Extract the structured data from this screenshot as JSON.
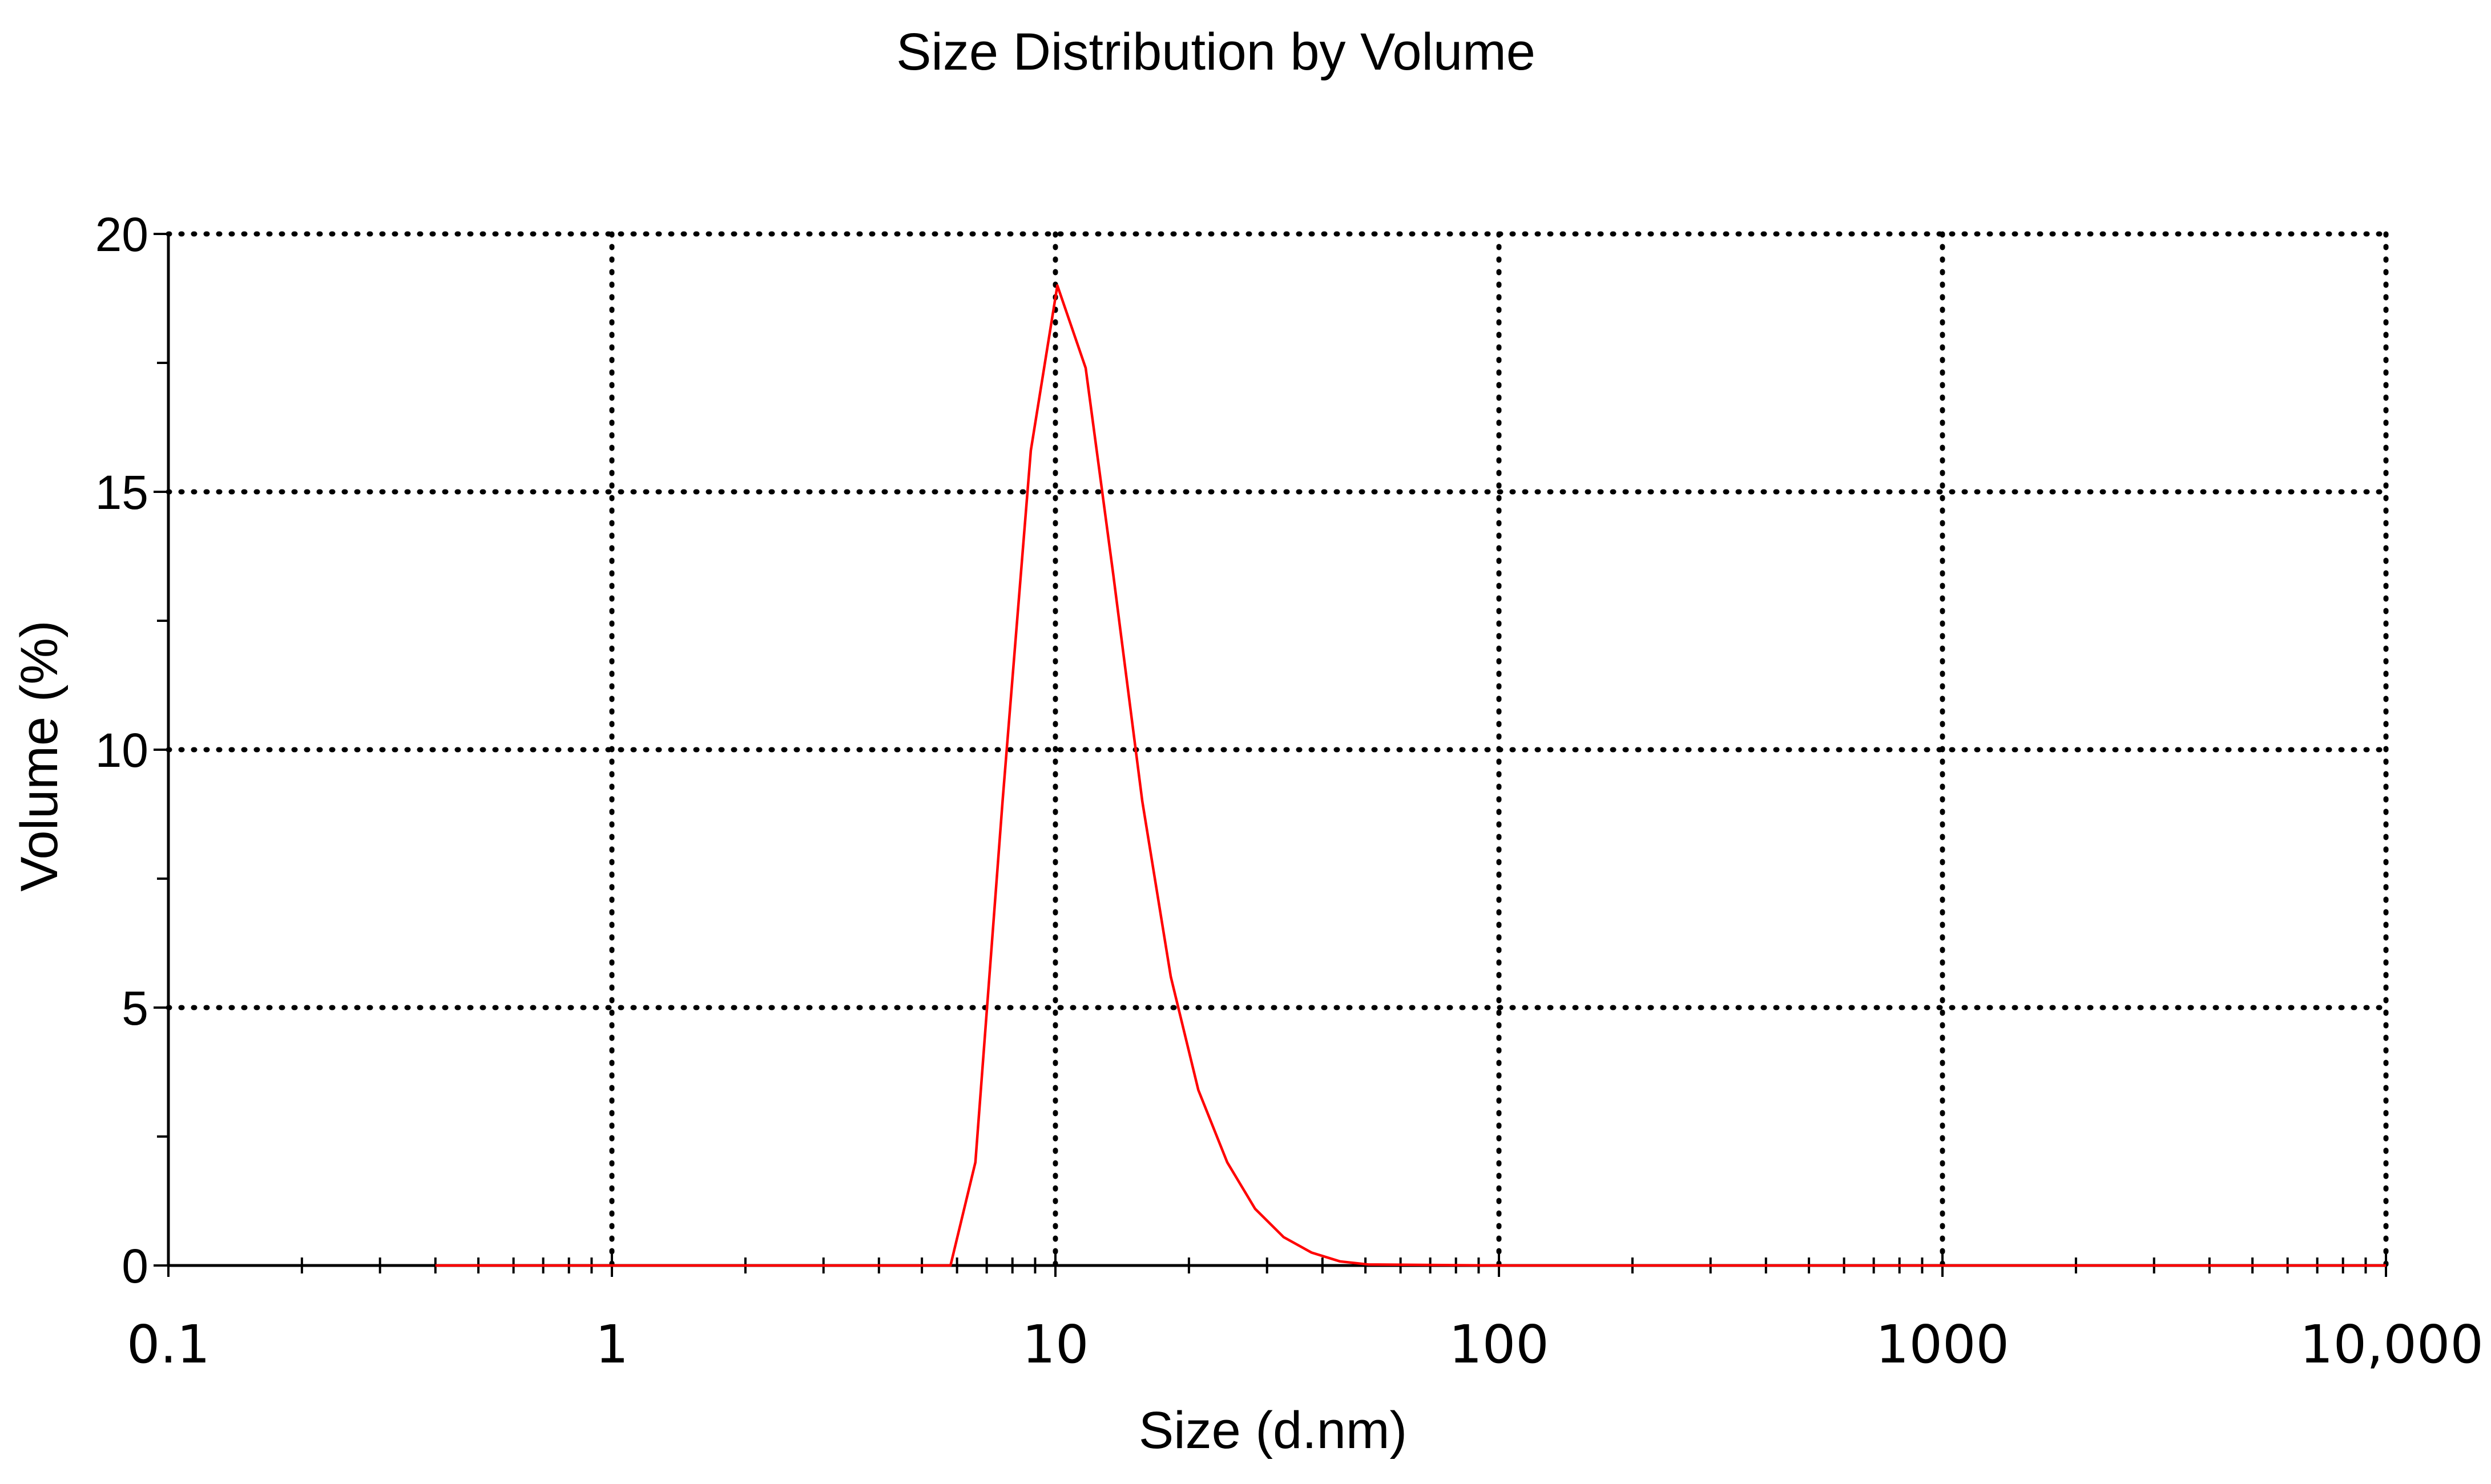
{
  "chart_data": {
    "type": "line",
    "title": "Size Distribution by Volume",
    "xlabel": "Size (d.nm)",
    "ylabel": "Volume (%)",
    "x_scale": "log",
    "xlim": [
      0.1,
      10000
    ],
    "ylim": [
      0,
      20
    ],
    "xticks": [
      {
        "value": 0.1,
        "label": "0.1"
      },
      {
        "value": 1,
        "label": "1"
      },
      {
        "value": 10,
        "label": "10"
      },
      {
        "value": 100,
        "label": "100"
      },
      {
        "value": 1000,
        "label": "1000"
      },
      {
        "value": 10000,
        "label": "10,000"
      }
    ],
    "yticks": [
      {
        "value": 0,
        "label": "0"
      },
      {
        "value": 5,
        "label": "5"
      },
      {
        "value": 10,
        "label": "10"
      },
      {
        "value": 15,
        "label": "15"
      },
      {
        "value": 20,
        "label": "20"
      }
    ],
    "grid": true,
    "grid_style": "dotted",
    "series": [
      {
        "color": "#ff0000",
        "x": [
          0.4,
          1,
          3,
          5.8,
          6.6,
          7.6,
          8.8,
          10.1,
          11.7,
          13.5,
          15.7,
          18.2,
          21,
          24.4,
          28.2,
          32.7,
          37.8,
          43.8,
          50.7,
          100,
          1000,
          10000
        ],
        "y": [
          0,
          0,
          0,
          0,
          2.0,
          9.0,
          15.8,
          19.0,
          17.4,
          13.4,
          9.0,
          5.6,
          3.4,
          2.0,
          1.1,
          0.55,
          0.25,
          0.08,
          0.02,
          0,
          0,
          0
        ]
      }
    ]
  }
}
